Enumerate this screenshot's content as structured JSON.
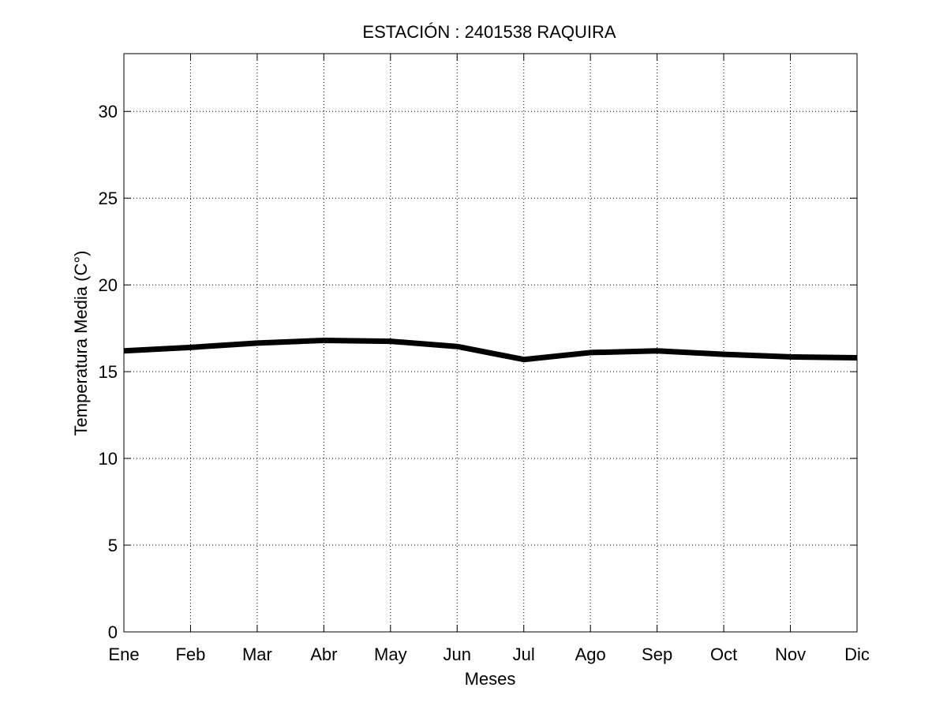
{
  "chart_data": {
    "type": "line",
    "title": "ESTACIÓN : 2401538  RAQUIRA",
    "xlabel": "Meses",
    "ylabel": "Temperatura Media (C°)",
    "categories": [
      "Ene",
      "Feb",
      "Mar",
      "Abr",
      "May",
      "Jun",
      "Jul",
      "Ago",
      "Sep",
      "Oct",
      "Nov",
      "Dic"
    ],
    "series": [
      {
        "values": [
          16.2,
          16.4,
          16.65,
          16.8,
          16.75,
          16.45,
          15.7,
          16.1,
          16.2,
          16.0,
          15.85,
          15.8
        ],
        "color": "#000000"
      }
    ],
    "ylim": [
      0,
      33.33
    ],
    "yticks": [
      0,
      5,
      10,
      15,
      20,
      25,
      30
    ],
    "grid": true
  }
}
